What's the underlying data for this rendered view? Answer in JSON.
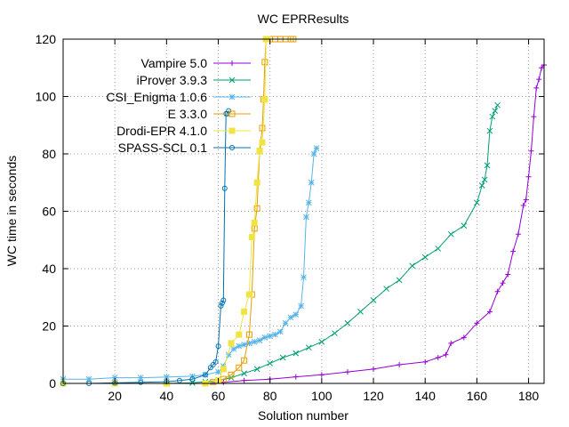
{
  "chart_data": {
    "type": "line",
    "title": "WC EPRResults",
    "xlabel": "Solution number",
    "ylabel": "WC time in seconds",
    "xlim": [
      0,
      186
    ],
    "ylim": [
      0,
      120
    ],
    "xticks": [
      20,
      40,
      60,
      80,
      100,
      120,
      140,
      160,
      180
    ],
    "yticks": [
      0,
      20,
      40,
      60,
      80,
      100,
      120
    ],
    "grid": true,
    "legend_position": "top-left",
    "series": [
      {
        "name": "Vampire 5.0",
        "color": "#9400d3",
        "marker": "plus",
        "x": [
          0,
          20,
          40,
          55,
          62,
          70,
          80,
          90,
          100,
          110,
          120,
          130,
          140,
          145,
          148,
          150,
          155,
          160,
          165,
          168,
          170,
          172,
          174,
          176,
          178,
          179,
          180,
          181,
          182,
          183,
          184,
          185,
          186
        ],
        "y": [
          0,
          0,
          0,
          0,
          0.4,
          1,
          1.5,
          2.3,
          3,
          4,
          5,
          6.5,
          7.5,
          9,
          10,
          14,
          16,
          21,
          25,
          32,
          35,
          38,
          46,
          52,
          62,
          64,
          72,
          81,
          93,
          103,
          106,
          110,
          111
        ]
      },
      {
        "name": "iProver 3.9.3",
        "color": "#009e73",
        "marker": "cross",
        "x": [
          0,
          20,
          40,
          50,
          55,
          60,
          65,
          70,
          75,
          80,
          85,
          90,
          95,
          100,
          105,
          110,
          115,
          120,
          125,
          130,
          135,
          140,
          145,
          150,
          155,
          160,
          162,
          163,
          164,
          165,
          166,
          167,
          168
        ],
        "y": [
          0,
          0,
          0,
          0.2,
          0.6,
          1,
          2,
          3.5,
          5,
          7,
          9,
          10.5,
          12.5,
          14.5,
          17.5,
          21,
          25,
          29,
          33,
          36,
          41,
          44,
          47,
          52,
          55,
          63,
          69,
          71,
          76,
          88,
          93,
          95,
          97
        ]
      },
      {
        "name": "CSI_Enigma 1.0.6",
        "color": "#56b4e9",
        "marker": "star",
        "x": [
          0,
          10,
          20,
          30,
          40,
          50,
          55,
          60,
          62,
          64,
          66,
          68,
          70,
          72,
          74,
          76,
          78,
          80,
          82,
          84,
          86,
          88,
          90,
          92,
          93,
          94,
          95,
          96,
          97,
          98
        ],
        "y": [
          1.5,
          1.5,
          2,
          2,
          2.2,
          2.5,
          3,
          4,
          6,
          10,
          12,
          13,
          13.5,
          14,
          14.5,
          15,
          16,
          16.5,
          17,
          18,
          21,
          23,
          24,
          27,
          37,
          58,
          63,
          70,
          80,
          82
        ]
      },
      {
        "name": "E 3.3.0",
        "color": "#e69f00",
        "marker": "square",
        "x": [
          0,
          20,
          40,
          55,
          58,
          60,
          62,
          65,
          68,
          70,
          72,
          73,
          74,
          75,
          76,
          77,
          77.5,
          78,
          78.5,
          79,
          80,
          82,
          84,
          86,
          88,
          89
        ],
        "y": [
          0,
          0,
          0,
          0,
          0.5,
          1,
          1.5,
          3,
          5.5,
          8,
          17,
          31,
          54,
          61,
          81,
          89,
          99,
          112,
          120,
          120,
          120,
          120,
          120,
          120,
          120,
          120
        ]
      },
      {
        "name": "Drodi-EPR 4.1.0",
        "color": "#f0e442",
        "marker": "square-filled",
        "x": [
          0,
          20,
          40,
          55,
          60,
          62,
          65,
          68,
          70,
          72,
          73,
          74,
          75,
          76,
          77,
          78,
          78.5,
          79
        ],
        "y": [
          0,
          0,
          0,
          0,
          1,
          5,
          14,
          17,
          25,
          31,
          51,
          56,
          70,
          81,
          84,
          99,
          120,
          120
        ]
      },
      {
        "name": "SPASS-SCL 0.1",
        "color": "#0072b2",
        "marker": "circle",
        "x": [
          0,
          10,
          20,
          30,
          40,
          45,
          50,
          55,
          57,
          58,
          59,
          60,
          61,
          61.5,
          62,
          62.5,
          63,
          63.5,
          64
        ],
        "y": [
          0,
          0,
          0.2,
          0.4,
          0.6,
          1,
          1.5,
          3,
          5.5,
          6.5,
          7.5,
          13,
          27,
          28,
          29,
          68,
          94,
          94,
          95
        ]
      }
    ]
  }
}
